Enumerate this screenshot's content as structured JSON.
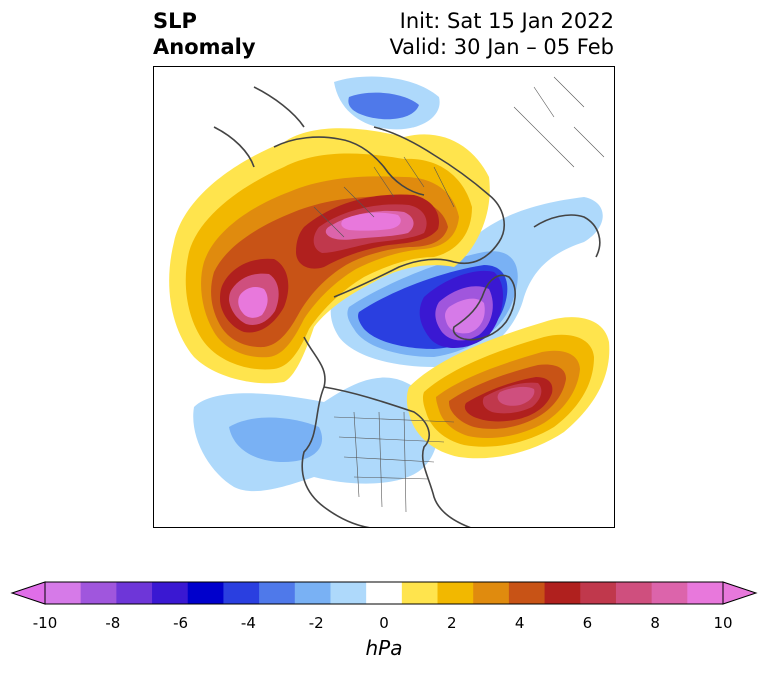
{
  "title": {
    "line1": "SLP",
    "line2": "Anomaly",
    "init": "Init: Sat 15 Jan 2022",
    "valid": "Valid: 30 Jan – 05 Feb"
  },
  "colorbar": {
    "units": "hPa",
    "min": -10,
    "max": 10,
    "ticks": [
      "-10",
      "-8",
      "-6",
      "-4",
      "-2",
      "0",
      "2",
      "4",
      "6",
      "8",
      "10"
    ],
    "colors": [
      "#d67ae8",
      "#a056dd",
      "#6e36d8",
      "#3a18d2",
      "#0000cc",
      "#2a3fe0",
      "#4f79ea",
      "#79b1f4",
      "#aed9fb",
      "#ffffff",
      "#ffe44d",
      "#f2b800",
      "#e08b0e",
      "#c85316",
      "#b0201e",
      "#c0384c",
      "#cf4f7e",
      "#dc64ab",
      "#e878dc"
    ],
    "under_color": "#e06ee8",
    "over_color": "#e878dc"
  }
}
